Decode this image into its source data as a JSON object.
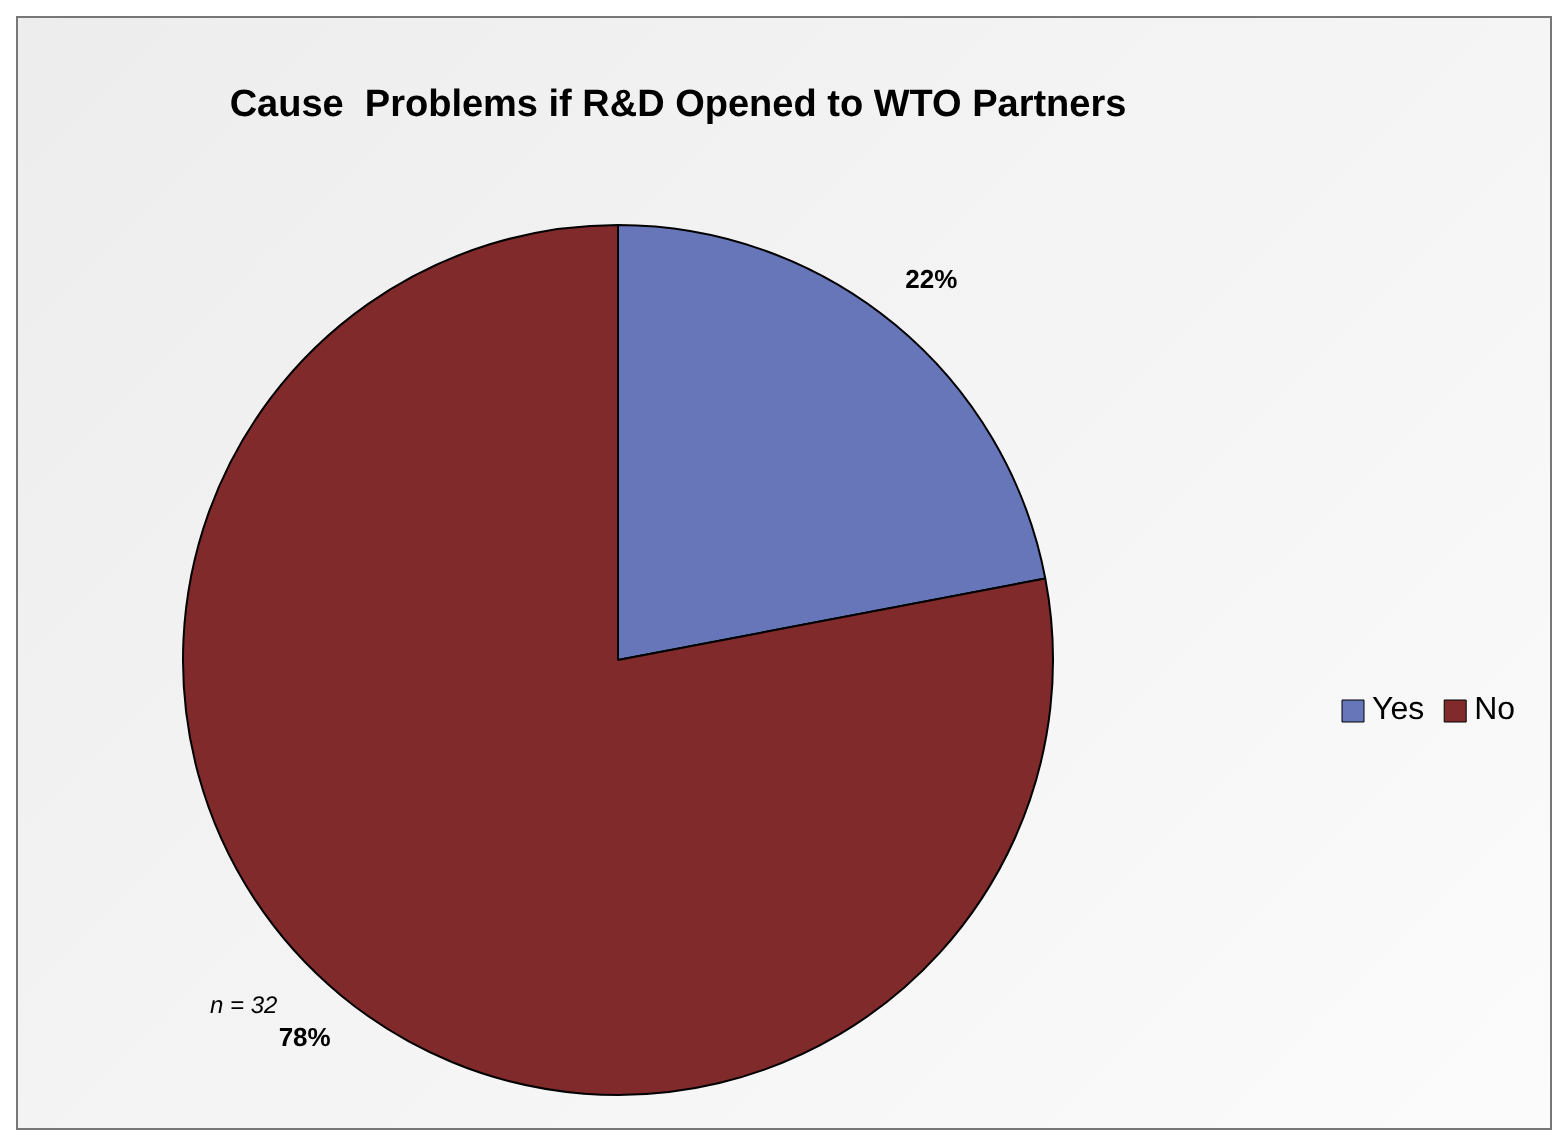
{
  "chart_data": {
    "type": "pie",
    "title": "Cause  Problems if R&D Opened to WTO Partners",
    "categories": [
      "Yes",
      "No"
    ],
    "values": [
      22,
      78
    ],
    "colors": [
      "#6676b8",
      "#802a2c"
    ],
    "value_labels": [
      "22%",
      "78%"
    ],
    "legend": "right",
    "annotations": [
      "n = 32"
    ]
  }
}
